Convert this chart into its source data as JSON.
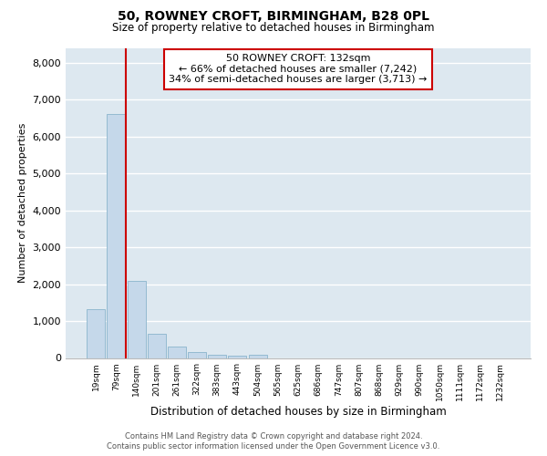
{
  "title_line1": "50, ROWNEY CROFT, BIRMINGHAM, B28 0PL",
  "title_line2": "Size of property relative to detached houses in Birmingham",
  "xlabel": "Distribution of detached houses by size in Birmingham",
  "ylabel": "Number of detached properties",
  "property_label": "50 ROWNEY CROFT: 132sqm",
  "annotation_line2": "← 66% of detached houses are smaller (7,242)",
  "annotation_line3": "34% of semi-detached houses are larger (3,713) →",
  "bin_labels": [
    "19sqm",
    "79sqm",
    "140sqm",
    "201sqm",
    "261sqm",
    "322sqm",
    "383sqm",
    "443sqm",
    "504sqm",
    "565sqm",
    "625sqm",
    "686sqm",
    "747sqm",
    "807sqm",
    "868sqm",
    "929sqm",
    "990sqm",
    "1050sqm",
    "1111sqm",
    "1172sqm",
    "1232sqm"
  ],
  "bin_values": [
    1320,
    6620,
    2080,
    660,
    305,
    160,
    90,
    60,
    85,
    0,
    0,
    0,
    0,
    0,
    0,
    0,
    0,
    0,
    0,
    0,
    0
  ],
  "bar_color": "#c5d8ea",
  "bar_edge_color": "#8ab4cc",
  "vline_x": 1.5,
  "vline_color": "#cc0000",
  "annotation_box_edgecolor": "#cc0000",
  "background_color": "#dde8f0",
  "grid_color": "#ffffff",
  "footer_line1": "Contains HM Land Registry data © Crown copyright and database right 2024.",
  "footer_line2": "Contains public sector information licensed under the Open Government Licence v3.0.",
  "ylim": [
    0,
    8400
  ],
  "yticks": [
    0,
    1000,
    2000,
    3000,
    4000,
    5000,
    6000,
    7000,
    8000
  ]
}
